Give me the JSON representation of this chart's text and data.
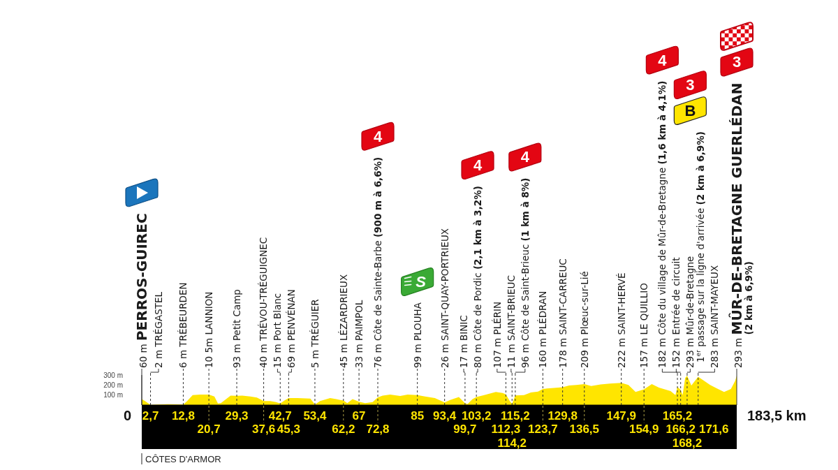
{
  "chart_data": {
    "type": "area",
    "color": "#ffe500",
    "x": [
      0,
      1,
      2.7,
      5,
      8,
      12.8,
      14,
      15.7,
      18,
      20.7,
      22.4,
      23.5,
      24.4,
      26,
      27.4,
      29.3,
      31,
      33.5,
      35.5,
      37.6,
      39.6,
      41.4,
      42.7,
      44,
      45.3,
      48,
      52,
      53.4,
      55,
      58.1,
      60,
      61.2,
      62.2,
      63.4,
      65,
      67,
      68.9,
      71.2,
      72.8,
      74.3,
      76.6,
      79.7,
      82,
      85,
      87.4,
      90.4,
      93.4,
      95.1,
      97.8,
      99.7,
      100.5,
      102,
      103.2,
      105.6,
      109.2,
      111.3,
      112.3,
      113.5,
      114.2,
      115.2,
      117.9,
      120,
      122.2,
      123.7,
      125,
      129.8,
      131.8,
      134,
      136.5,
      138.6,
      141.5,
      144.4,
      147.9,
      150.1,
      152.3,
      154.9,
      157.3,
      159.5,
      163.1,
      164.6,
      165.2,
      166.2,
      166.8,
      167.6,
      168.2,
      169.5,
      171.6,
      173.1,
      175.3,
      177.4,
      179.6,
      181.7,
      183,
      183.5
    ],
    "values": [
      60,
      40,
      2,
      5,
      8,
      6,
      40,
      100,
      105,
      105,
      85,
      15,
      20,
      60,
      95,
      93,
      95,
      85,
      75,
      40,
      40,
      30,
      15,
      45,
      69,
      70,
      65,
      5,
      40,
      70,
      60,
      50,
      45,
      20,
      60,
      33,
      20,
      30,
      76,
      95,
      105,
      90,
      105,
      99,
      85,
      70,
      26,
      50,
      80,
      17,
      10,
      60,
      80,
      100,
      130,
      120,
      107,
      40,
      11,
      96,
      100,
      125,
      135,
      160,
      165,
      178,
      195,
      200,
      209,
      190,
      205,
      215,
      222,
      200,
      130,
      157,
      210,
      175,
      140,
      100,
      182,
      152,
      100,
      270,
      293,
      195,
      283,
      250,
      200,
      165,
      130,
      160,
      240,
      293
    ],
    "xlim": [
      0,
      183.5
    ],
    "xticks": [
      {
        "value": 2.7,
        "label": "2,7"
      },
      {
        "value": 12.8,
        "label": "12,8"
      },
      {
        "value": 29.3,
        "label": "29,3"
      },
      {
        "value": 42.7,
        "label": "42,7"
      },
      {
        "value": 53.4,
        "label": "53,4"
      },
      {
        "value": 67,
        "label": "67"
      },
      {
        "value": 85,
        "label": "85"
      },
      {
        "value": 93.4,
        "label": "93,4"
      },
      {
        "value": 103.2,
        "label": "103,2"
      },
      {
        "value": 115.2,
        "label": "115,2"
      },
      {
        "value": 129.8,
        "label": "129,8"
      },
      {
        "value": 147.9,
        "label": "147,9"
      },
      {
        "value": 165.2,
        "label": "165,2"
      }
    ],
    "ylim": [
      0,
      300
    ],
    "yticks": [
      {
        "value": 100,
        "label": "100 m"
      },
      {
        "value": 200,
        "label": "200 m"
      },
      {
        "value": 300,
        "label": "300 m"
      }
    ],
    "ref_lines": [
      {
        "axis": "x",
        "value": 0,
        "label": "60 m PERROS-GUIREC",
        "line_style": "solid"
      },
      {
        "axis": "x",
        "value": 2.7,
        "label": "2 m TRÉGASTEL",
        "line_style": "dashed"
      },
      {
        "axis": "x",
        "value": 12.8,
        "label": "6 m TRÉBEURDEN",
        "line_style": "dashed"
      },
      {
        "axis": "x",
        "value": 20.7,
        "label": "10 5m LANNION",
        "line_style": "dashed"
      },
      {
        "axis": "x",
        "value": 29.3,
        "label": "93 m Petit Camp",
        "line_style": "dashed"
      },
      {
        "axis": "x",
        "value": 37.6,
        "label": "40 m TRÉVOU-TRÉGUIGNEC",
        "line_style": "dashed"
      },
      {
        "axis": "x",
        "value": 42.7,
        "label": "15 m Port Blanc",
        "line_style": "dashed"
      },
      {
        "axis": "x",
        "value": 45.3,
        "label": "69 m PENVÉNAN",
        "line_style": "dashed"
      },
      {
        "axis": "x",
        "value": 53.4,
        "label": "5 m TRÉGUIER",
        "line_style": "dashed"
      },
      {
        "axis": "x",
        "value": 62.2,
        "label": "45 m LÉZARDRIEUX",
        "line_style": "dashed"
      },
      {
        "axis": "x",
        "value": 67,
        "label": "33 m PAIMPOL",
        "line_style": "dashed"
      },
      {
        "axis": "x",
        "value": 72.8,
        "label": "76 m Côte de Sainte-Barbe (900 m à 6,6%)",
        "line_style": "dashed"
      },
      {
        "axis": "x",
        "value": 85,
        "label": "99 m PLOUHA",
        "line_style": "dashed"
      },
      {
        "axis": "x",
        "value": 93.4,
        "label": "26 m SAINT-QUAY-PORTRIEUX",
        "line_style": "dashed"
      },
      {
        "axis": "x",
        "value": 99.7,
        "label": "17 m BINIC",
        "line_style": "dashed"
      },
      {
        "axis": "x",
        "value": 103.2,
        "label": "80 m Côte de Pordic (2,1 km à 3,2%)",
        "line_style": "dashed"
      },
      {
        "axis": "x",
        "value": 112.3,
        "label": "107 m PLÉRIN",
        "line_style": "dashed"
      },
      {
        "axis": "x",
        "value": 114.2,
        "label": "11 m SAINT-BRIEUC",
        "line_style": "dashed"
      },
      {
        "axis": "x",
        "value": 115.2,
        "label": "96 m Côte de Saint-Brieuc (1 km à 8%)",
        "line_style": "dashed"
      },
      {
        "axis": "x",
        "value": 123.7,
        "label": "160 m PLÉDRAN",
        "line_style": "dashed"
      },
      {
        "axis": "x",
        "value": 129.8,
        "label": "178 m SAINT-CARREUC",
        "line_style": "dashed"
      },
      {
        "axis": "x",
        "value": 136.5,
        "label": "209 m Plœuc-sur-Lié",
        "line_style": "dashed"
      },
      {
        "axis": "x",
        "value": 147.9,
        "label": "222 m SAINT-HERVÉ",
        "line_style": "dashed"
      },
      {
        "axis": "x",
        "value": 154.9,
        "label": "157 m LE QUILLIO",
        "line_style": "dashed"
      },
      {
        "axis": "x",
        "value": 165.2,
        "label": "182 m Côte du village de Mûr-de-Bretagne (1,6 km à 4,1%)",
        "line_style": "dashed"
      },
      {
        "axis": "x",
        "value": 166.2,
        "label": "152 m Entrée de circuit",
        "line_style": "dashed"
      },
      {
        "axis": "x",
        "value": 168.2,
        "label": "293 m Mûr-de-Bretagne\n1$^{er}$ passage sur la ligne d'arrivée (2 km à 6,9%)",
        "line_style": "dashed"
      },
      {
        "axis": "x",
        "value": 171.6,
        "label": "283 m SAINT-MAYEUX",
        "line_style": "dashed"
      },
      {
        "axis": "x",
        "value": 183.5,
        "label": "293 m MÛR-DE-BRETAGNE GUERLÉDAN\n(2 km à 6,9%)",
        "line_style": "solid"
      }
    ],
    "annotations": [
      {
        "text": "0",
        "x": 0,
        "y": 0
      },
      {
        "text": "20,7",
        "x": 20.7,
        "y": 0
      },
      {
        "text": "37,6",
        "x": 37.6,
        "y": 0
      },
      {
        "text": "45,3",
        "x": 45.3,
        "y": 0
      },
      {
        "text": "62,2",
        "x": 62.2,
        "y": 0
      },
      {
        "text": "72,8",
        "x": 72.8,
        "y": 0
      },
      {
        "text": "99,7",
        "x": 99.7,
        "y": 0
      },
      {
        "text": "112,3",
        "x": 112.3,
        "y": 0
      },
      {
        "text": "114,2",
        "x": 114.2,
        "y": 0
      },
      {
        "text": "123,7",
        "x": 123.7,
        "y": 0
      },
      {
        "text": "136,5",
        "x": 136.5,
        "y": 0
      },
      {
        "text": "154,9",
        "x": 154.9,
        "y": 0
      },
      {
        "text": "166,2",
        "x": 166.2,
        "y": 0
      },
      {
        "text": "168,2",
        "x": 168.2,
        "y": 0
      },
      {
        "text": "171,6",
        "x": 171.6,
        "y": 0
      },
      {
        "text": "183,5 km",
        "x": 183.5,
        "y": 0
      },
      "4",
      "S",
      "4",
      "4",
      "4",
      "B",
      "3",
      "3",
      "CÔTES D'ARMOR"
    ]
  }
}
